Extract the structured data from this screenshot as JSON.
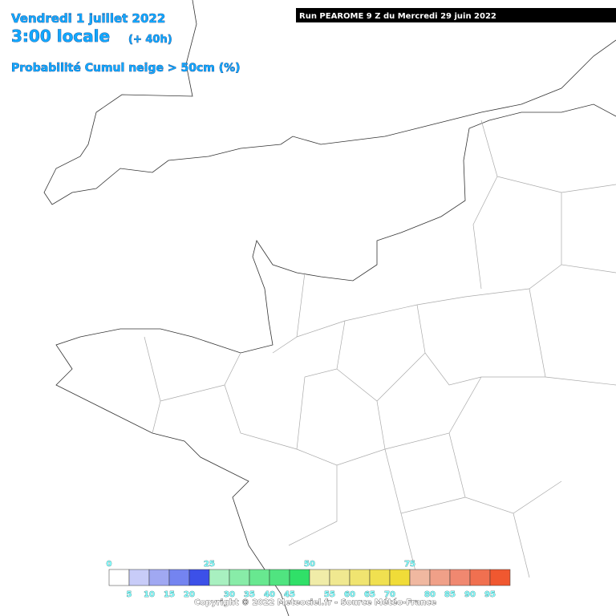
{
  "header": {
    "date": "Vendredi 1 juillet 2022",
    "time": "3:00 locale",
    "lead": "(+ 40h)",
    "parameter": "Probabilité Cumul neige > 50cm (%)",
    "run": "Run PEAROME 9 Z du Mercredi 29 juin 2022"
  },
  "legend": {
    "colors": [
      "#ffffff",
      "#c8ccf8",
      "#a0a8f2",
      "#7484f0",
      "#3c50e8",
      "#a8f0c0",
      "#88eca8",
      "#68e890",
      "#50e480",
      "#30e068",
      "#f0eca8",
      "#f0e890",
      "#f0e470",
      "#f0e050",
      "#f0dc38",
      "#f0b8a0",
      "#f0a088",
      "#f08870",
      "#f07050",
      "#f05830"
    ],
    "upper_labels": [
      0,
      25,
      50,
      75
    ],
    "lower_labels": [
      5,
      10,
      15,
      20,
      30,
      35,
      40,
      45,
      55,
      60,
      65,
      70,
      80,
      85,
      90,
      95
    ]
  },
  "footer": {
    "copyright": "Copyright © 2022 Meteociel.fr - Source Météo-France"
  }
}
